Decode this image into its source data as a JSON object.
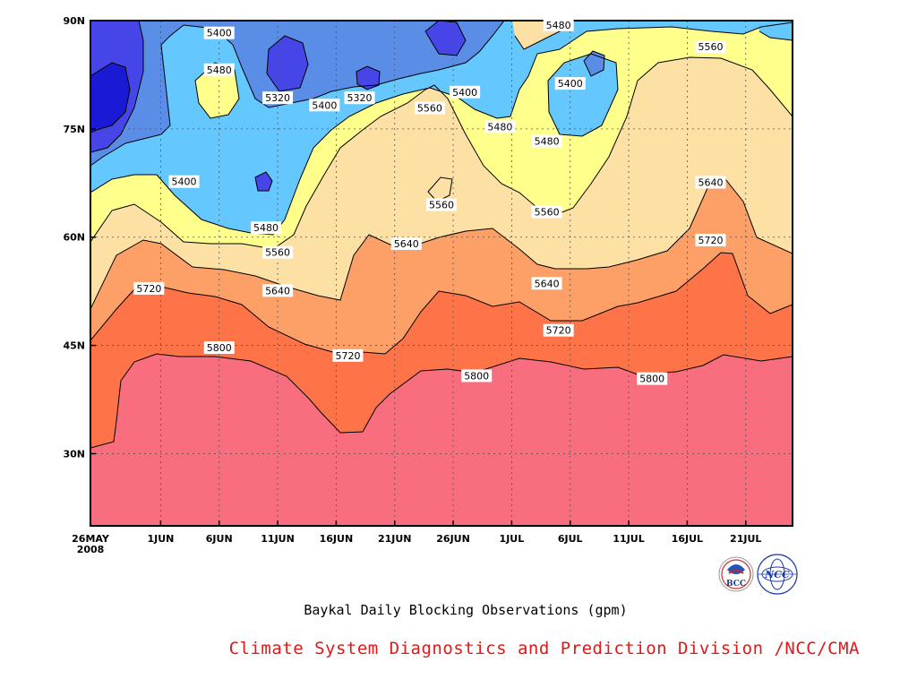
{
  "page": {
    "title": "Baykal Daily Blocking Observations (gpm)",
    "credit": "Climate System Diagnostics and Prediction Division /NCC/CMA",
    "logos": [
      "BCC",
      "NCC"
    ]
  },
  "chart_data": {
    "type": "contour",
    "title": "Baykal Daily Blocking Observations (gpm)",
    "x_ticks": [
      "26MAY\n2008",
      "1JUN",
      "6JUN",
      "11JUN",
      "16JUN",
      "21JUN",
      "26JUN",
      "1JUL",
      "6JUL",
      "11JUL",
      "16JUL",
      "21JUL"
    ],
    "x_range": [
      "2008-05-26",
      "2008-07-25"
    ],
    "y_ticks": [
      "30N",
      "45N",
      "60N",
      "75N",
      "90N"
    ],
    "y_range": [
      20,
      90
    ],
    "grid": true,
    "levels": [
      5240,
      5320,
      5400,
      5480,
      5560,
      5640,
      5720,
      5800
    ],
    "level_colors": [
      "#1a1ad4",
      "#4646e8",
      "#5a8ee6",
      "#64c8ff",
      "#ffff8c",
      "#fde1a4",
      "#fda068",
      "#ff7348",
      "#f86e7e"
    ],
    "contour_labels": [
      {
        "value": "5400",
        "date": "2008-06-06",
        "lat": 88.3
      },
      {
        "value": "5480",
        "date": "2008-06-06",
        "lat": 83.2
      },
      {
        "value": "5320",
        "date": "2008-06-11",
        "lat": 79.3
      },
      {
        "value": "5320",
        "date": "2008-06-18",
        "lat": 79.3
      },
      {
        "value": "5400",
        "date": "2008-06-15",
        "lat": 78.3
      },
      {
        "value": "5400",
        "date": "2008-06-27",
        "lat": 80.1
      },
      {
        "value": "5560",
        "date": "2008-06-24",
        "lat": 77.9
      },
      {
        "value": "5480",
        "date": "2008-07-05",
        "lat": 89.4
      },
      {
        "value": "5400",
        "date": "2008-07-06",
        "lat": 81.3
      },
      {
        "value": "5480",
        "date": "2008-06-30",
        "lat": 75.3
      },
      {
        "value": "5480",
        "date": "2008-07-04",
        "lat": 73.3
      },
      {
        "value": "5560",
        "date": "2008-07-18",
        "lat": 86.4
      },
      {
        "value": "5400",
        "date": "2008-06-03",
        "lat": 67.7
      },
      {
        "value": "5560",
        "date": "2008-06-25",
        "lat": 64.5
      },
      {
        "value": "5560",
        "date": "2008-07-04",
        "lat": 63.5
      },
      {
        "value": "5640",
        "date": "2008-07-18",
        "lat": 67.6
      },
      {
        "value": "5480",
        "date": "2008-06-10",
        "lat": 61.3
      },
      {
        "value": "5560",
        "date": "2008-06-11",
        "lat": 57.9
      },
      {
        "value": "5640",
        "date": "2008-06-22",
        "lat": 59.1
      },
      {
        "value": "5720",
        "date": "2008-07-18",
        "lat": 59.6
      },
      {
        "value": "5720",
        "date": "2008-05-31",
        "lat": 52.9
      },
      {
        "value": "5640",
        "date": "2008-06-11",
        "lat": 52.6
      },
      {
        "value": "5640",
        "date": "2008-07-04",
        "lat": 53.6
      },
      {
        "value": "5720",
        "date": "2008-07-05",
        "lat": 47.1
      },
      {
        "value": "5800",
        "date": "2008-06-06",
        "lat": 44.7
      },
      {
        "value": "5720",
        "date": "2008-06-17",
        "lat": 43.6
      },
      {
        "value": "5800",
        "date": "2008-06-28",
        "lat": 40.8
      },
      {
        "value": "5800",
        "date": "2008-07-13",
        "lat": 40.4
      }
    ]
  }
}
